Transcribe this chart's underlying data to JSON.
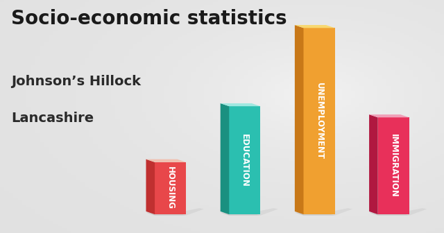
{
  "title": "Socio-economic statistics",
  "subtitle1": "Johnson’s Hillock",
  "subtitle2": "Lancashire",
  "categories": [
    "HOUSING",
    "EDUCATION",
    "UNEMPLOYMENT",
    "IMMIGRATION"
  ],
  "values": [
    0.28,
    0.58,
    1.0,
    0.52
  ],
  "bar_front_colors": [
    "#e8474a",
    "#2bbfb0",
    "#f0a030",
    "#e8305a"
  ],
  "bar_left_colors": [
    "#c03030",
    "#1a9080",
    "#c87818",
    "#b01840"
  ],
  "bar_top_colors": [
    "#f0c0b0",
    "#a0e8e0",
    "#f8d870",
    "#f0a0b8"
  ],
  "background_color": "#d0d0d0",
  "title_color": "#1a1a1a",
  "subtitle_color": "#2a2a2a",
  "title_fontsize": 20,
  "subtitle_fontsize": 14,
  "label_fontsize": 8.5
}
